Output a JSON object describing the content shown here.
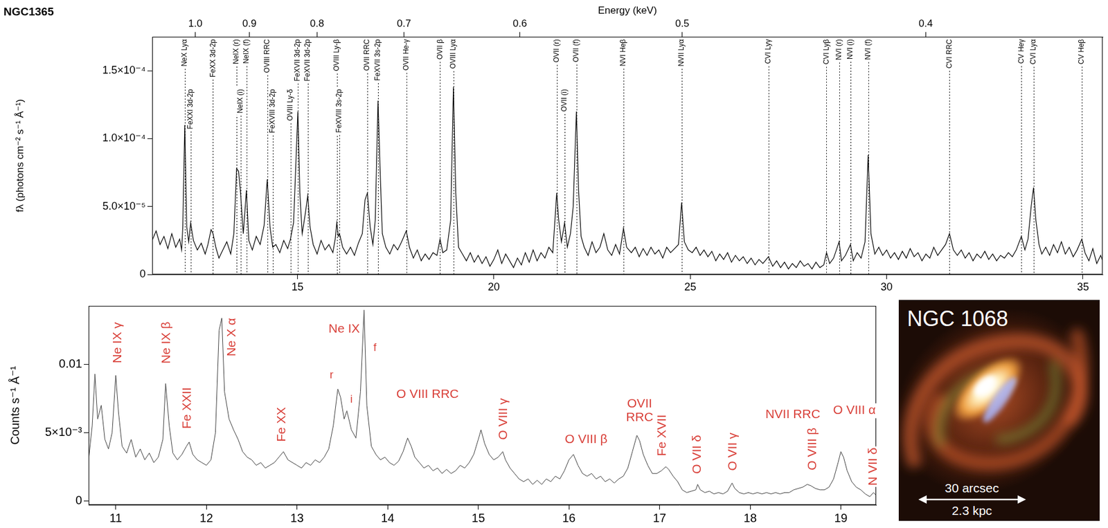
{
  "chart_data": [
    {
      "type": "line",
      "title": "NGC1365",
      "x": [
        11.3,
        11.4,
        11.5,
        11.6,
        11.7,
        11.8,
        11.9,
        12.0,
        12.05,
        12.08,
        12.13,
        12.18,
        12.23,
        12.28,
        12.35,
        12.45,
        12.55,
        12.65,
        12.72,
        12.8,
        12.85,
        12.92,
        13.0,
        13.1,
        13.2,
        13.3,
        13.38,
        13.45,
        13.5,
        13.55,
        13.62,
        13.7,
        13.76,
        13.85,
        13.95,
        14.05,
        14.15,
        14.23,
        14.3,
        14.37,
        14.45,
        14.55,
        14.65,
        14.75,
        14.82,
        14.9,
        14.97,
        15.01,
        15.06,
        15.12,
        15.2,
        15.26,
        15.32,
        15.4,
        15.5,
        15.6,
        15.7,
        15.8,
        15.9,
        15.96,
        16.0,
        16.04,
        16.07,
        16.15,
        16.25,
        16.35,
        16.45,
        16.55,
        16.65,
        16.72,
        16.78,
        16.85,
        16.92,
        16.98,
        17.05,
        17.1,
        17.16,
        17.25,
        17.35,
        17.45,
        17.55,
        17.65,
        17.77,
        17.85,
        17.95,
        18.05,
        18.15,
        18.25,
        18.35,
        18.45,
        18.55,
        18.63,
        18.7,
        18.8,
        18.9,
        18.97,
        19.03,
        19.1,
        19.2,
        19.3,
        19.4,
        19.5,
        19.6,
        19.7,
        19.8,
        19.9,
        20.0,
        20.1,
        20.2,
        20.3,
        20.4,
        20.5,
        20.6,
        20.7,
        20.8,
        20.9,
        21.0,
        21.1,
        21.2,
        21.3,
        21.4,
        21.5,
        21.6,
        21.65,
        21.72,
        21.8,
        21.87,
        21.95,
        22.02,
        22.1,
        22.16,
        22.22,
        22.3,
        22.4,
        22.5,
        22.6,
        22.7,
        22.8,
        22.9,
        23.0,
        23.1,
        23.2,
        23.3,
        23.38,
        23.5,
        23.6,
        23.7,
        23.8,
        23.9,
        24.0,
        24.1,
        24.2,
        24.3,
        24.4,
        24.5,
        24.6,
        24.7,
        24.78,
        24.85,
        24.95,
        25.05,
        25.15,
        25.25,
        25.35,
        25.45,
        25.55,
        25.65,
        25.75,
        25.85,
        25.95,
        26.05,
        26.15,
        26.25,
        26.35,
        26.45,
        26.55,
        26.65,
        26.75,
        26.85,
        26.99,
        27.1,
        27.2,
        27.3,
        27.4,
        27.5,
        27.6,
        27.7,
        27.8,
        27.9,
        28.0,
        28.1,
        28.2,
        28.3,
        28.4,
        28.47,
        28.55,
        28.65,
        28.79,
        28.85,
        28.95,
        29.08,
        29.15,
        29.25,
        29.35,
        29.45,
        29.53,
        29.6,
        29.7,
        29.8,
        29.9,
        30.0,
        30.1,
        30.2,
        30.3,
        30.4,
        30.5,
        30.6,
        30.7,
        30.8,
        30.9,
        31.0,
        31.1,
        31.2,
        31.3,
        31.4,
        31.5,
        31.6,
        31.7,
        31.8,
        31.9,
        32.0,
        32.1,
        32.2,
        32.3,
        32.4,
        32.5,
        32.6,
        32.7,
        32.8,
        32.9,
        33.0,
        33.1,
        33.2,
        33.3,
        33.43,
        33.52,
        33.6,
        33.68,
        33.74,
        33.8,
        33.88,
        33.95,
        34.05,
        34.15,
        34.25,
        34.35,
        34.45,
        34.55,
        34.65,
        34.75,
        34.85,
        34.97,
        35.05,
        35.15,
        35.25,
        35.35,
        35.45,
        35.5
      ],
      "values": [
        2.5e-05,
        3.2e-05,
        2.2e-05,
        2.8e-05,
        1.9e-05,
        3e-05,
        2e-05,
        2.6e-05,
        1.8e-05,
        3.5e-05,
        0.00011,
        3.5e-05,
        2.4e-05,
        3.8e-05,
        2.5e-05,
        1.8e-05,
        2.3e-05,
        1.5e-05,
        2.2e-05,
        3.3e-05,
        3e-05,
        2e-05,
        1.2e-05,
        1.8e-05,
        2.4e-05,
        1.5e-05,
        3e-05,
        7.8e-05,
        7.6e-05,
        6e-05,
        3e-05,
        6.2e-05,
        2.5e-05,
        1.8e-05,
        2.8e-05,
        2.2e-05,
        3.6e-05,
        7e-05,
        3.5e-05,
        2e-05,
        2.2e-05,
        1.6e-05,
        2.5e-05,
        1.9e-05,
        2.6e-05,
        3.8e-05,
        9e-05,
        0.00012,
        6e-05,
        3e-05,
        4.5e-05,
        5.8e-05,
        3.5e-05,
        2.2e-05,
        1.5e-05,
        2.5e-05,
        1.8e-05,
        2.2e-05,
        1.6e-05,
        2.6e-05,
        3.8e-05,
        2.8e-05,
        3e-05,
        2e-05,
        1.5e-05,
        2e-05,
        1.4e-05,
        2.3e-05,
        3e-05,
        5.5e-05,
        6e-05,
        3.5e-05,
        2.2e-05,
        4e-05,
        0.000128,
        8e-05,
        3e-05,
        2e-05,
        1.5e-05,
        2.2e-05,
        1.8e-05,
        2.4e-05,
        3.2e-05,
        2e-05,
        1.2e-05,
        1.8e-05,
        1e-05,
        1.5e-05,
        1.1e-05,
        1.6e-05,
        1.4e-05,
        2.6e-05,
        1.6e-05,
        1.8e-05,
        4e-05,
        0.000138,
        6e-05,
        2e-05,
        1.5e-05,
        1e-05,
        1.6e-05,
        9e-06,
        1.4e-05,
        8e-06,
        1.3e-05,
        6e-06,
        1.1e-05,
        1.8e-05,
        8e-06,
        1.5e-05,
        1e-05,
        5e-06,
        1.2e-05,
        7e-06,
        1.6e-05,
        9e-06,
        1.8e-05,
        1e-05,
        1.6e-05,
        1.2e-05,
        2e-05,
        1.6e-05,
        6e-05,
        4e-05,
        2.4e-05,
        3.8e-05,
        2e-05,
        3e-05,
        5e-05,
        0.00012,
        6e-05,
        2.8e-05,
        2e-05,
        1.4e-05,
        2.4e-05,
        1.6e-05,
        2e-05,
        3e-05,
        1.8e-05,
        1.4e-05,
        2.2e-05,
        1.5e-05,
        3.4e-05,
        2e-05,
        1.6e-05,
        2e-05,
        1.3e-05,
        1.9e-05,
        1.4e-05,
        2e-05,
        1.5e-05,
        1.8e-05,
        1.2e-05,
        2e-05,
        1.6e-05,
        1.9e-05,
        2.2e-05,
        5.3e-05,
        2.4e-05,
        1.8e-05,
        1.6e-05,
        2e-05,
        1.4e-05,
        1.8e-05,
        1.3e-05,
        1.7e-05,
        1e-05,
        1.5e-05,
        1.1e-05,
        1.6e-05,
        9e-06,
        1.4e-05,
        1e-05,
        1.3e-05,
        8e-06,
        1.2e-05,
        7e-06,
        1.1e-05,
        8e-06,
        1.3e-05,
        6e-06,
        1e-05,
        5e-06,
        9e-06,
        4e-06,
        8e-06,
        5e-06,
        1e-05,
        6e-06,
        8e-06,
        4e-06,
        9e-06,
        5e-06,
        7e-06,
        1.6e-05,
        8e-06,
        1.2e-05,
        2.4e-05,
        1e-05,
        1.4e-05,
        2.2e-05,
        1e-05,
        1.6e-05,
        1.2e-05,
        2.4e-05,
        8.8e-05,
        3e-05,
        1.5e-05,
        2e-05,
        1.4e-05,
        1.8e-05,
        1.2e-05,
        1.6e-05,
        1.1e-05,
        1.7e-05,
        1.2e-05,
        1.9e-05,
        1.3e-05,
        1.6e-05,
        1e-05,
        1.5e-05,
        1.2e-05,
        2e-05,
        1.4e-05,
        1.8e-05,
        2.2e-05,
        3e-05,
        1.8e-05,
        1.4e-05,
        1.8e-05,
        1.2e-05,
        1.6e-05,
        1e-05,
        1.5e-05,
        1.2e-05,
        1.7e-05,
        1.1e-05,
        1.5e-05,
        1e-05,
        1.4e-05,
        1.2e-05,
        1.6e-05,
        1.3e-05,
        1.8e-05,
        2.8e-05,
        1.8e-05,
        2.6e-05,
        5e-05,
        6.4e-05,
        4e-05,
        2.2e-05,
        1.5e-05,
        2e-05,
        1.4e-05,
        2.2e-05,
        1.6e-05,
        2.4e-05,
        1.5e-05,
        2e-05,
        1.3e-05,
        1.8e-05,
        2.6e-05,
        1.6e-05,
        1e-05,
        1.9e-05,
        8e-06,
        1.4e-05,
        1e-05
      ],
      "color": "#000000",
      "xlim": [
        11.3,
        35.5
      ],
      "xticks": [
        15,
        20,
        25,
        30,
        35
      ],
      "x2_label": "Energy (keV)",
      "x2ticks": [
        {
          "value": 1,
          "label": "1.0"
        },
        0.9,
        0.8,
        0.7,
        0.6,
        0.5,
        0.4
      ],
      "ylim": [
        0,
        0.000175
      ],
      "yticks": [
        0,
        {
          "value": 5e-05,
          "label": "5.0×10⁻⁵"
        },
        {
          "value": 0.0001,
          "label": "1.0×10⁻⁴"
        },
        {
          "value": 0.00015,
          "label": "1.5×10⁻⁴"
        }
      ],
      "y_label": "fλ (photons cm⁻² s⁻¹ Å⁻¹)",
      "grid": false,
      "annotations": [
        {
          "text": "NeX Lyα",
          "x": 12.13
        },
        {
          "text": "FeXXI 3d-2p",
          "x": 12.28
        },
        {
          "text": "FeXX 3d-2p",
          "x": 12.85
        },
        {
          "text": "NeIX (r)",
          "x": 13.45
        },
        {
          "text": "NeIX (i)",
          "x": 13.55
        },
        {
          "text": "NeIX (f)",
          "x": 13.7
        },
        {
          "text": "OVIII RRC",
          "x": 14.23
        },
        {
          "text": "FeXVIII 3d-2p",
          "x": 14.37
        },
        {
          "text": "OVIII Ly-δ",
          "x": 14.82
        },
        {
          "text": "FeXVII 3d-2p",
          "x": 15.01
        },
        {
          "text": "FeXVII 3d-2p",
          "x": 15.26
        },
        {
          "text": "OVIII Ly-β",
          "x": 16.0
        },
        {
          "text": "FeXVIII 3s-2p",
          "x": 16.07
        },
        {
          "text": "OVII RRC",
          "x": 16.78
        },
        {
          "text": "FeXVII 3s-2p",
          "x": 17.05
        },
        {
          "text": "OVII He-γ",
          "x": 17.77
        },
        {
          "text": "OVII β",
          "x": 18.63
        },
        {
          "text": "OVIII Lyα",
          "x": 18.97
        },
        {
          "text": "OVII (r)",
          "x": 21.6
        },
        {
          "text": "OVII (i)",
          "x": 21.8
        },
        {
          "text": "OVII (f)",
          "x": 22.1
        },
        {
          "text": "NVI Heβ",
          "x": 23.3
        },
        {
          "text": "NVII Lyα",
          "x": 24.78
        },
        {
          "text": "CVI Lyγ",
          "x": 26.99
        },
        {
          "text": "CVI Lyβ",
          "x": 28.47
        },
        {
          "text": "NVI (r)",
          "x": 28.79
        },
        {
          "text": "NVI (i)",
          "x": 29.08
        },
        {
          "text": "NVI (f)",
          "x": 29.53
        },
        {
          "text": "CVI RRC",
          "x": 31.6
        },
        {
          "text": "CV Heγ",
          "x": 33.43
        },
        {
          "text": "CVI Lyα",
          "x": 33.74
        },
        {
          "text": "CV Heβ",
          "x": 34.97
        }
      ]
    },
    {
      "type": "line",
      "x": [
        10.7,
        10.74,
        10.77,
        10.8,
        10.84,
        10.88,
        10.92,
        10.96,
        11.0,
        11.03,
        11.07,
        11.12,
        11.17,
        11.22,
        11.27,
        11.32,
        11.37,
        11.42,
        11.47,
        11.52,
        11.55,
        11.59,
        11.63,
        11.68,
        11.73,
        11.78,
        11.81,
        11.85,
        11.9,
        11.95,
        12.0,
        12.05,
        12.1,
        12.14,
        12.17,
        12.2,
        12.25,
        12.3,
        12.35,
        12.4,
        12.45,
        12.5,
        12.55,
        12.6,
        12.65,
        12.7,
        12.75,
        12.8,
        12.85,
        12.9,
        12.95,
        13.0,
        13.05,
        13.1,
        13.15,
        13.2,
        13.25,
        13.3,
        13.35,
        13.4,
        13.45,
        13.48,
        13.52,
        13.55,
        13.6,
        13.65,
        13.7,
        13.74,
        13.77,
        13.82,
        13.87,
        13.92,
        13.97,
        14.02,
        14.07,
        14.12,
        14.17,
        14.22,
        14.26,
        14.3,
        14.35,
        14.4,
        14.45,
        14.5,
        14.55,
        14.6,
        14.65,
        14.7,
        14.75,
        14.8,
        14.85,
        14.9,
        14.95,
        15.0,
        15.03,
        15.07,
        15.12,
        15.17,
        15.22,
        15.27,
        15.3,
        15.35,
        15.4,
        15.45,
        15.5,
        15.55,
        15.6,
        15.65,
        15.7,
        15.75,
        15.8,
        15.85,
        15.9,
        15.95,
        16.0,
        16.05,
        16.1,
        16.15,
        16.2,
        16.25,
        16.3,
        16.35,
        16.4,
        16.45,
        16.5,
        16.55,
        16.6,
        16.65,
        16.7,
        16.75,
        16.78,
        16.82,
        16.87,
        16.92,
        16.97,
        17.02,
        17.07,
        17.1,
        17.15,
        17.2,
        17.25,
        17.3,
        17.35,
        17.4,
        17.42,
        17.45,
        17.5,
        17.55,
        17.6,
        17.65,
        17.7,
        17.75,
        17.8,
        17.83,
        17.88,
        17.93,
        17.98,
        18.03,
        18.08,
        18.13,
        18.18,
        18.23,
        18.28,
        18.33,
        18.38,
        18.43,
        18.48,
        18.53,
        18.58,
        18.63,
        18.67,
        18.72,
        18.77,
        18.82,
        18.87,
        18.92,
        18.97,
        19.0,
        19.03,
        19.07,
        19.12,
        19.17,
        19.22,
        19.27,
        19.32,
        19.36,
        19.39
      ],
      "values": [
        0.003,
        0.0055,
        0.0093,
        0.006,
        0.007,
        0.0045,
        0.0038,
        0.005,
        0.0092,
        0.0065,
        0.004,
        0.0035,
        0.0045,
        0.0032,
        0.0038,
        0.003,
        0.0035,
        0.0028,
        0.0032,
        0.0045,
        0.0086,
        0.0055,
        0.0035,
        0.003,
        0.0034,
        0.004,
        0.0043,
        0.0034,
        0.003,
        0.0028,
        0.0026,
        0.003,
        0.005,
        0.0125,
        0.0134,
        0.008,
        0.006,
        0.0052,
        0.0045,
        0.0036,
        0.0032,
        0.003,
        0.0026,
        0.0028,
        0.0024,
        0.0026,
        0.0028,
        0.0032,
        0.0036,
        0.003,
        0.0028,
        0.0026,
        0.0024,
        0.0028,
        0.0026,
        0.003,
        0.0028,
        0.0032,
        0.0038,
        0.0055,
        0.0082,
        0.0076,
        0.006,
        0.0066,
        0.0052,
        0.0046,
        0.008,
        0.014,
        0.007,
        0.004,
        0.0034,
        0.003,
        0.0032,
        0.0028,
        0.0026,
        0.0029,
        0.0036,
        0.0046,
        0.004,
        0.0032,
        0.0028,
        0.0024,
        0.0026,
        0.0022,
        0.0024,
        0.002,
        0.0023,
        0.002,
        0.0022,
        0.0026,
        0.0024,
        0.0028,
        0.0034,
        0.0045,
        0.0052,
        0.0042,
        0.0034,
        0.003,
        0.0032,
        0.0036,
        0.003,
        0.0024,
        0.002,
        0.0016,
        0.0014,
        0.0016,
        0.0012,
        0.0015,
        0.0012,
        0.0016,
        0.0014,
        0.0018,
        0.0016,
        0.0022,
        0.003,
        0.0034,
        0.0026,
        0.002,
        0.0018,
        0.002,
        0.0016,
        0.0018,
        0.0014,
        0.0016,
        0.0013,
        0.0016,
        0.0018,
        0.0024,
        0.0036,
        0.0048,
        0.0044,
        0.0034,
        0.0026,
        0.002,
        0.002,
        0.0022,
        0.0025,
        0.0023,
        0.0018,
        0.0014,
        0.0008,
        0.0006,
        0.0007,
        0.0008,
        0.0012,
        0.0008,
        0.0006,
        0.0007,
        0.0005,
        0.0006,
        0.0005,
        0.0007,
        0.0013,
        0.0009,
        0.0006,
        0.0005,
        0.0006,
        0.0005,
        0.0006,
        0.0005,
        0.0006,
        0.0005,
        0.0006,
        0.0005,
        0.0006,
        0.0006,
        0.0008,
        0.0009,
        0.001,
        0.0012,
        0.0011,
        0.0009,
        0.0008,
        0.0008,
        0.001,
        0.0016,
        0.0028,
        0.0036,
        0.0032,
        0.0022,
        0.0014,
        0.001,
        0.0008,
        0.0005,
        0.0003,
        0.0006,
        0.0004
      ],
      "color": "#3c3c3c",
      "xlim": [
        10.7,
        19.39
      ],
      "xticks": [
        11,
        12,
        13,
        14,
        15,
        16,
        17,
        18,
        19
      ],
      "ylim": [
        -0.0003,
        0.0143
      ],
      "yticks": [
        0,
        {
          "value": 0.005,
          "label": "5×10⁻³"
        },
        0.01
      ],
      "y_label": "Counts s⁻¹ Å⁻¹",
      "grid": false,
      "annotations": [
        {
          "text": "Ne IX γ",
          "x": 11.02,
          "y": 0.0116
        },
        {
          "text": "Ne IX β",
          "x": 11.56,
          "y": 0.0116
        },
        {
          "text": "Fe XXII",
          "x": 11.79,
          "y": 0.0068
        },
        {
          "text": "Ne X α",
          "x": 12.28,
          "y": 0.012
        },
        {
          "text": "Fe XX",
          "x": 12.83,
          "y": 0.0056
        },
        {
          "text": "Ne IX",
          "x": 13.52,
          "y": 0.0126
        },
        {
          "text": "r",
          "x": 13.38,
          "y": 0.0092
        },
        {
          "text": "i",
          "x": 13.6,
          "y": 0.0074
        },
        {
          "text": "f",
          "x": 13.86,
          "y": 0.0112
        },
        {
          "text": "O VIII RRC",
          "x": 14.44,
          "y": 0.0078
        },
        {
          "text": "O VIII γ",
          "x": 15.28,
          "y": 0.006
        },
        {
          "text": "O VIII β",
          "x": 16.19,
          "y": 0.0045
        },
        {
          "text": "OVII RRC",
          "x": 16.78,
          "y": 0.0066
        },
        {
          "text": "Fe XVII",
          "x": 17.03,
          "y": 0.0048
        },
        {
          "text": "O VII δ",
          "x": 17.42,
          "y": 0.0034
        },
        {
          "text": "O VII γ",
          "x": 17.81,
          "y": 0.0036
        },
        {
          "text": "NVII RRC",
          "x": 18.47,
          "y": 0.0063
        },
        {
          "text": "O VIII β",
          "x": 18.69,
          "y": 0.0038
        },
        {
          "text": "O VIII α",
          "x": 19.15,
          "y": 0.0066
        },
        {
          "text": "N VII δ",
          "x": 19.36,
          "y": 0.0025
        }
      ]
    }
  ],
  "image": {
    "label": "NGC 1068",
    "scale_bar": {
      "top": "30 arcsec",
      "bottom": "2.3 kpc"
    }
  }
}
